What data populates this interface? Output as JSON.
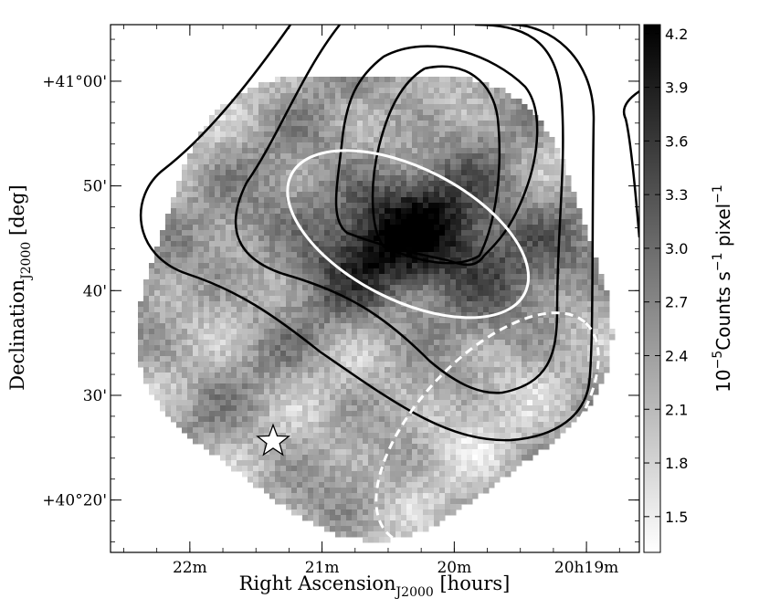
{
  "chart_data": {
    "type": "heatmap",
    "title": "",
    "xlabel": "Right Ascension",
    "xlabel_sub": "J2000",
    "xlabel_unit": " [hours]",
    "ylabel": "Declination",
    "ylabel_sub": "J2000",
    "ylabel_unit": " [deg]",
    "x_ticks": [
      {
        "label": "22m",
        "ra_minutes": 22
      },
      {
        "label": "21m",
        "ra_minutes": 21
      },
      {
        "label": "20m",
        "ra_minutes": 20
      },
      {
        "label": "20h19m",
        "ra_minutes": 19
      }
    ],
    "y_ticks": [
      {
        "label": "+40°20'",
        "dec_arcmin": 20
      },
      {
        "label": "30'",
        "dec_arcmin": 30
      },
      {
        "label": "40'",
        "dec_arcmin": 40
      },
      {
        "label": "50'",
        "dec_arcmin": 50
      },
      {
        "label": "+41°00'",
        "dec_arcmin": 60
      }
    ],
    "xlim_ra_minutes": [
      22.6,
      18.6
    ],
    "ylim_dec_arcmin": [
      15,
      65.4
    ],
    "colorbar": {
      "label_prefix": "10",
      "label_exp": "−5",
      "label_mid": "Counts s",
      "label_exp2": "−1",
      "label_end": " pixel",
      "label_exp3": "−1",
      "ticks": [
        "1.5",
        "1.8",
        "2.1",
        "2.4",
        "2.7",
        "3.0",
        "3.3",
        "3.6",
        "3.9",
        "4.2"
      ],
      "range": [
        1.3,
        4.25
      ],
      "colormap": "gray_r"
    },
    "emission_peak": {
      "ra_minutes": 20.3,
      "dec_arcmin": 45,
      "value": 4.2
    },
    "background_level": 2.3,
    "contours": {
      "count": 3,
      "color": "#000000"
    },
    "ellipses": [
      {
        "name": "solid",
        "center_ra_minutes": 20.35,
        "center_dec_arcmin": 45.4,
        "semi_major_arcmin": 12.5,
        "semi_minor_arcmin": 6.3,
        "color": "#ffffff",
        "style": "solid"
      },
      {
        "name": "dashed",
        "center_ra_minutes": 19.75,
        "center_dec_arcmin": 26.8,
        "semi_major_arcmin": 13.8,
        "semi_minor_arcmin": 6.7,
        "color": "#ffffff",
        "style": "dashed"
      }
    ],
    "marker": {
      "symbol": "star",
      "ra_minutes": 21.37,
      "dec_arcmin": 25.6,
      "color": "#ffffff"
    },
    "grid": false
  }
}
